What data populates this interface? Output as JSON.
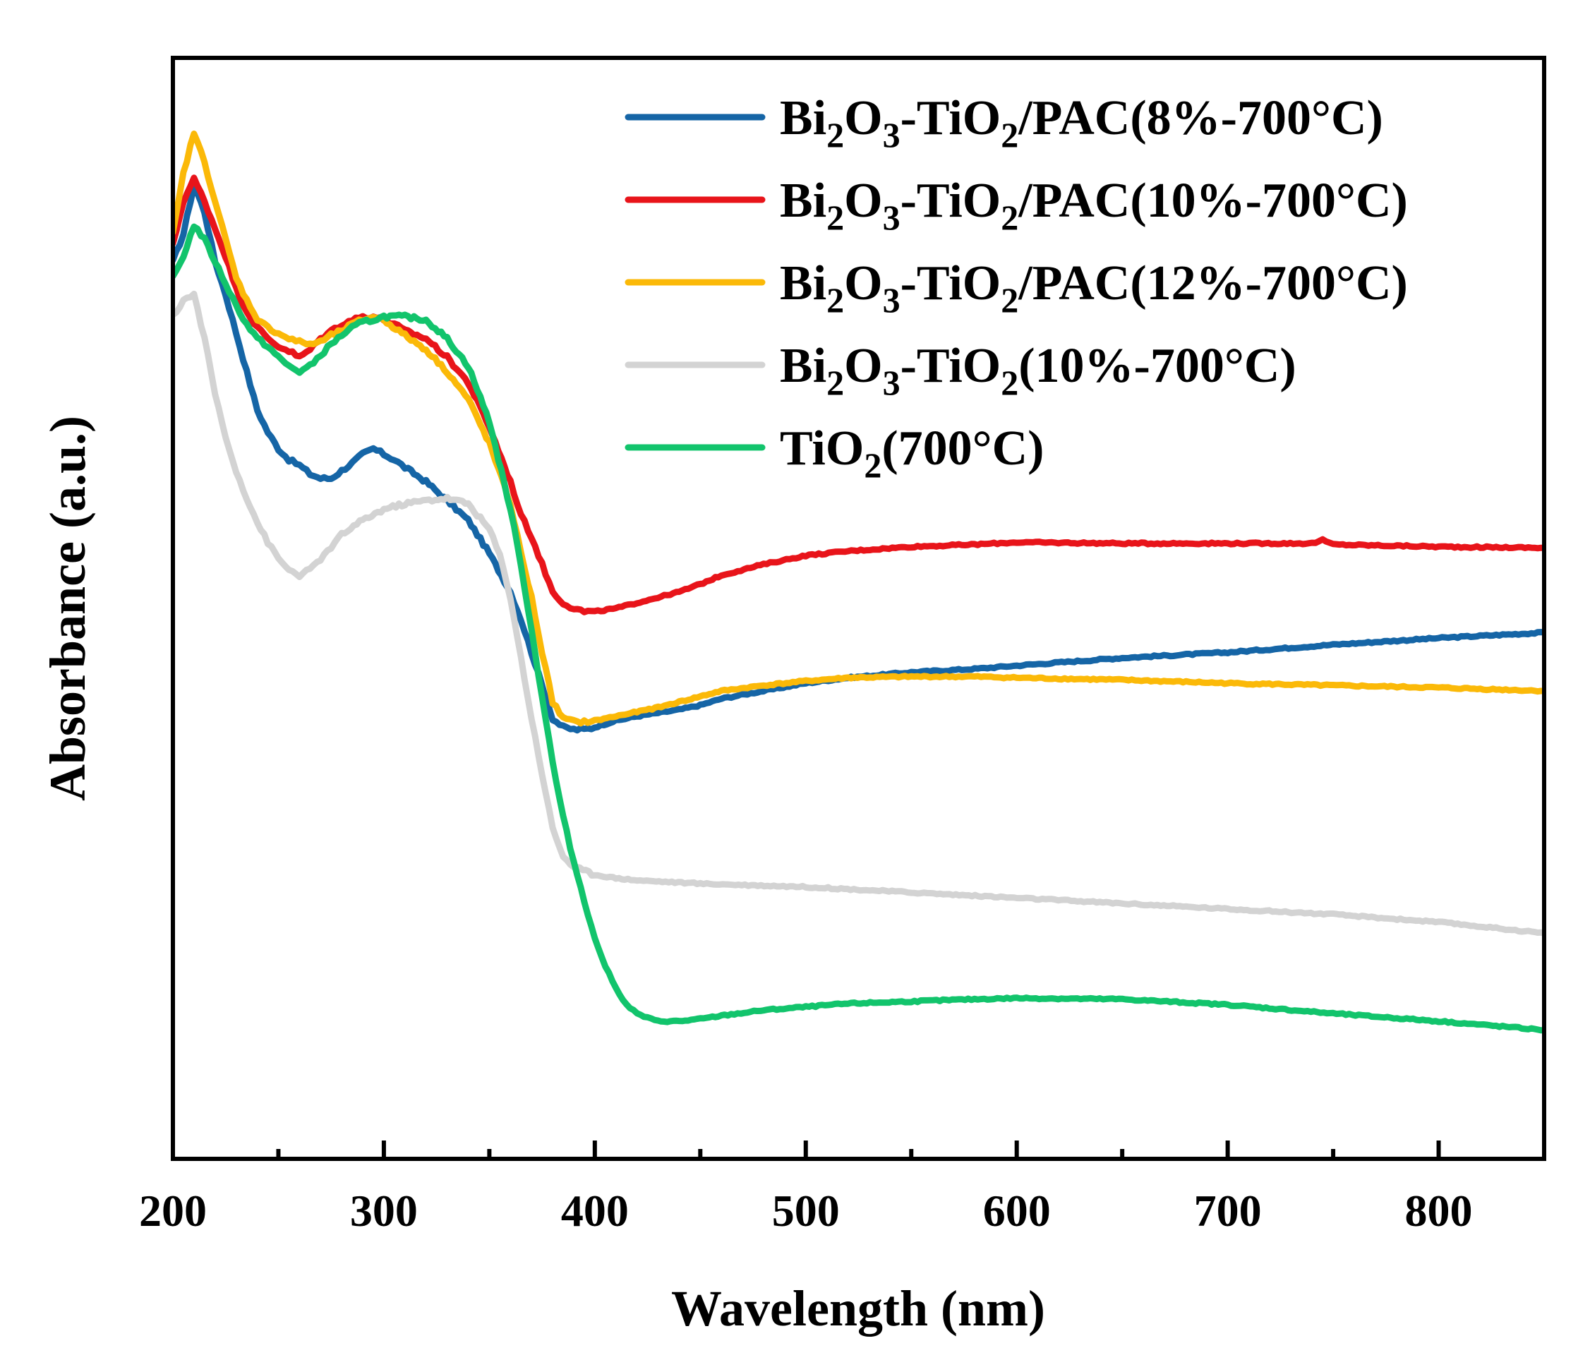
{
  "chart_data": {
    "type": "line",
    "title": "",
    "xlabel": "Wavelength (nm)",
    "ylabel": "Absorbance (a.u.)",
    "xlim": [
      200,
      850
    ],
    "ylim": [
      0,
      1
    ],
    "x_ticks": [
      200,
      300,
      400,
      500,
      600,
      700,
      800
    ],
    "x_tick_labels": [
      "200",
      "300",
      "400",
      "500",
      "600",
      "700",
      "800"
    ],
    "x_minor_ticks": [
      250,
      350,
      450,
      550,
      650,
      750
    ],
    "y_ticks_shown": false,
    "grid": false,
    "legend_position": "top-right",
    "series": [
      {
        "name": "Bi2O3-TiO2/PAC(8%-700°C)",
        "label_parts": [
          "Bi",
          "2",
          "O",
          "3",
          "-TiO",
          "2",
          "/PAC(8%-700°C)"
        ],
        "color": "#1565a6",
        "x": [
          200,
          205,
          210,
          215,
          220,
          225,
          230,
          235,
          240,
          245,
          250,
          255,
          260,
          265,
          270,
          275,
          280,
          285,
          290,
          295,
          300,
          305,
          310,
          320,
          330,
          340,
          350,
          360,
          365,
          370,
          375,
          380,
          385,
          390,
          395,
          400,
          410,
          420,
          430,
          440,
          450,
          460,
          480,
          500,
          520,
          550,
          580,
          600,
          650,
          700,
          750,
          800,
          850
        ],
        "y": [
          0.815,
          0.84,
          0.885,
          0.86,
          0.815,
          0.785,
          0.75,
          0.715,
          0.68,
          0.66,
          0.645,
          0.635,
          0.63,
          0.622,
          0.618,
          0.618,
          0.625,
          0.632,
          0.64,
          0.645,
          0.64,
          0.635,
          0.628,
          0.615,
          0.598,
          0.58,
          0.55,
          0.515,
          0.49,
          0.46,
          0.43,
          0.4,
          0.392,
          0.39,
          0.39,
          0.392,
          0.398,
          0.402,
          0.405,
          0.408,
          0.412,
          0.418,
          0.425,
          0.432,
          0.437,
          0.442,
          0.445,
          0.448,
          0.455,
          0.46,
          0.467,
          0.473,
          0.478
        ]
      },
      {
        "name": "Bi2O3-TiO2/PAC(10%-700°C)",
        "label_parts": [
          "Bi",
          "2",
          "O",
          "3",
          "-TiO",
          "2",
          "/PAC(10%-700°C)"
        ],
        "color": "#e8141a",
        "x": [
          200,
          205,
          210,
          215,
          220,
          225,
          230,
          235,
          240,
          245,
          250,
          255,
          260,
          265,
          270,
          275,
          280,
          285,
          290,
          295,
          300,
          305,
          310,
          320,
          330,
          340,
          350,
          360,
          365,
          370,
          375,
          380,
          385,
          390,
          395,
          400,
          410,
          420,
          430,
          440,
          450,
          460,
          480,
          500,
          520,
          550,
          580,
          600,
          650,
          700,
          740,
          745,
          750,
          800,
          850
        ],
        "y": [
          0.83,
          0.87,
          0.89,
          0.87,
          0.845,
          0.82,
          0.79,
          0.77,
          0.755,
          0.745,
          0.738,
          0.734,
          0.728,
          0.735,
          0.745,
          0.752,
          0.758,
          0.762,
          0.765,
          0.765,
          0.762,
          0.758,
          0.752,
          0.745,
          0.728,
          0.705,
          0.665,
          0.615,
          0.585,
          0.565,
          0.54,
          0.515,
          0.505,
          0.5,
          0.497,
          0.497,
          0.5,
          0.505,
          0.51,
          0.515,
          0.522,
          0.53,
          0.54,
          0.548,
          0.552,
          0.556,
          0.558,
          0.56,
          0.559,
          0.559,
          0.559,
          0.562,
          0.558,
          0.556,
          0.555
        ]
      },
      {
        "name": "Bi2O3-TiO2/PAC(12%-700°C)",
        "label_parts": [
          "Bi",
          "2",
          "O",
          "3",
          "-TiO",
          "2",
          "/PAC(12%-700°C)"
        ],
        "color": "#fbb908",
        "x": [
          200,
          205,
          210,
          215,
          220,
          225,
          230,
          235,
          240,
          245,
          250,
          255,
          260,
          265,
          270,
          275,
          280,
          285,
          290,
          295,
          300,
          310,
          320,
          330,
          340,
          350,
          360,
          365,
          370,
          375,
          380,
          385,
          390,
          395,
          400,
          410,
          420,
          430,
          440,
          450,
          460,
          480,
          500,
          520,
          550,
          580,
          600,
          650,
          700,
          750,
          800,
          850
        ],
        "y": [
          0.84,
          0.895,
          0.932,
          0.905,
          0.87,
          0.835,
          0.8,
          0.78,
          0.763,
          0.755,
          0.75,
          0.745,
          0.742,
          0.74,
          0.742,
          0.748,
          0.752,
          0.758,
          0.762,
          0.765,
          0.762,
          0.748,
          0.735,
          0.715,
          0.69,
          0.65,
          0.595,
          0.55,
          0.51,
          0.46,
          0.415,
          0.4,
          0.397,
          0.397,
          0.398,
          0.402,
          0.406,
          0.41,
          0.415,
          0.42,
          0.425,
          0.43,
          0.434,
          0.437,
          0.438,
          0.438,
          0.437,
          0.435,
          0.432,
          0.43,
          0.428,
          0.425
        ]
      },
      {
        "name": "Bi2O3-TiO2(10%-700°C)",
        "label_parts": [
          "Bi",
          "2",
          "O",
          "3",
          "-TiO",
          "2",
          "(10%-700°C)"
        ],
        "color": "#d3d3d3",
        "x": [
          200,
          205,
          210,
          215,
          220,
          225,
          230,
          235,
          240,
          245,
          250,
          255,
          260,
          265,
          270,
          275,
          280,
          290,
          300,
          310,
          320,
          330,
          340,
          350,
          355,
          360,
          365,
          370,
          375,
          380,
          385,
          390,
          400,
          410,
          420,
          450,
          500,
          550,
          600,
          650,
          700,
          750,
          800,
          850
        ],
        "y": [
          0.765,
          0.78,
          0.785,
          0.745,
          0.695,
          0.655,
          0.625,
          0.6,
          0.578,
          0.56,
          0.545,
          0.535,
          0.53,
          0.535,
          0.545,
          0.555,
          0.567,
          0.58,
          0.59,
          0.595,
          0.598,
          0.6,
          0.595,
          0.572,
          0.548,
          0.51,
          0.455,
          0.4,
          0.35,
          0.3,
          0.275,
          0.265,
          0.258,
          0.255,
          0.253,
          0.25,
          0.247,
          0.242,
          0.237,
          0.232,
          0.227,
          0.222,
          0.215,
          0.205
        ]
      },
      {
        "name": "TiO2(700°C)",
        "label_parts": [
          "TiO",
          "2",
          "(700°C)"
        ],
        "color": "#12c46c",
        "x": [
          200,
          205,
          210,
          215,
          220,
          225,
          230,
          235,
          240,
          245,
          250,
          255,
          260,
          265,
          270,
          275,
          280,
          285,
          290,
          295,
          300,
          310,
          320,
          330,
          340,
          350,
          360,
          365,
          370,
          375,
          380,
          385,
          390,
          395,
          400,
          405,
          410,
          415,
          420,
          425,
          430,
          440,
          450,
          460,
          480,
          500,
          520,
          550,
          580,
          600,
          650,
          700,
          750,
          800,
          850
        ],
        "y": [
          0.8,
          0.82,
          0.848,
          0.835,
          0.815,
          0.795,
          0.775,
          0.758,
          0.745,
          0.738,
          0.728,
          0.72,
          0.715,
          0.72,
          0.73,
          0.74,
          0.748,
          0.755,
          0.76,
          0.762,
          0.765,
          0.765,
          0.762,
          0.745,
          0.72,
          0.67,
          0.59,
          0.54,
          0.48,
          0.42,
          0.36,
          0.31,
          0.27,
          0.235,
          0.2,
          0.175,
          0.155,
          0.14,
          0.132,
          0.128,
          0.125,
          0.125,
          0.127,
          0.13,
          0.135,
          0.138,
          0.141,
          0.143,
          0.145,
          0.146,
          0.145,
          0.14,
          0.132,
          0.125,
          0.117
        ]
      }
    ]
  }
}
